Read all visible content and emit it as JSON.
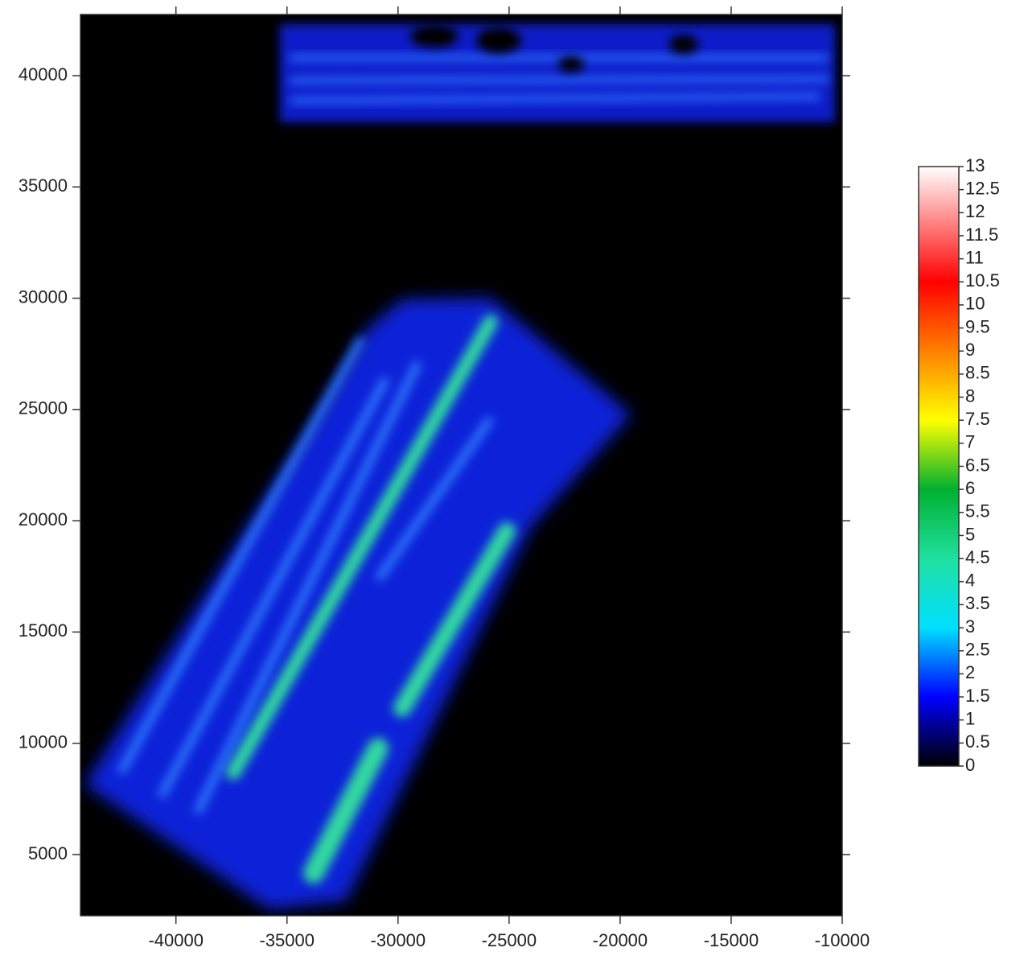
{
  "chart_data": {
    "type": "heatmap",
    "xlim": [
      -44300,
      -10000
    ],
    "xticks": [
      -40000,
      -35000,
      -30000,
      -25000,
      -20000,
      -15000,
      -10000
    ],
    "ylim": [
      2250,
      42750
    ],
    "yticks": [
      5000,
      10000,
      15000,
      20000,
      25000,
      30000,
      35000,
      40000
    ],
    "background": "#000000",
    "colorbar": {
      "lim": [
        0,
        13
      ],
      "ticks": [
        0,
        0.5,
        1,
        1.5,
        2,
        2.5,
        3,
        3.5,
        4,
        4.5,
        5,
        5.5,
        6,
        6.5,
        7,
        7.5,
        8,
        8.5,
        9,
        9.5,
        10,
        10.5,
        11,
        11.5,
        12,
        12.5,
        13
      ],
      "colorscale": [
        [
          0,
          "#000000"
        ],
        [
          1.5,
          "#0000ff"
        ],
        [
          3,
          "#00e0ff"
        ],
        [
          4.5,
          "#20e0a0"
        ],
        [
          6,
          "#00b030"
        ],
        [
          7.5,
          "#ffff00"
        ],
        [
          9,
          "#ff8000"
        ],
        [
          10.5,
          "#ff0000"
        ],
        [
          13,
          "#ffffff"
        ]
      ]
    }
  }
}
